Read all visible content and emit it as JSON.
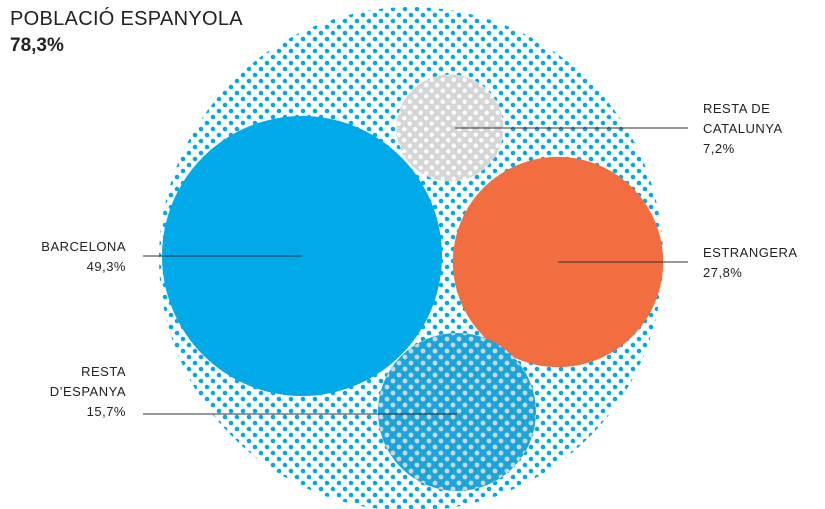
{
  "chart_data": {
    "type": "packed-bubble",
    "title": "POBLACIÓ ESPANYOLA",
    "total": 78.3,
    "total_label": "78,3%",
    "categories": [
      "BARCELONA",
      "RESTA DE CATALUNYA",
      "ESTRANGERA",
      "RESTA D’ESPANYA"
    ],
    "values": [
      49.3,
      7.2,
      27.8,
      15.7
    ],
    "value_labels": [
      "49,3%",
      "7,2%",
      "27,8%",
      "15,7%"
    ],
    "colors": [
      "#00a9e8",
      "#d6d6d6",
      "#f26d40",
      "#1aa6dc"
    ],
    "total_color": "#00a9e8"
  }
}
